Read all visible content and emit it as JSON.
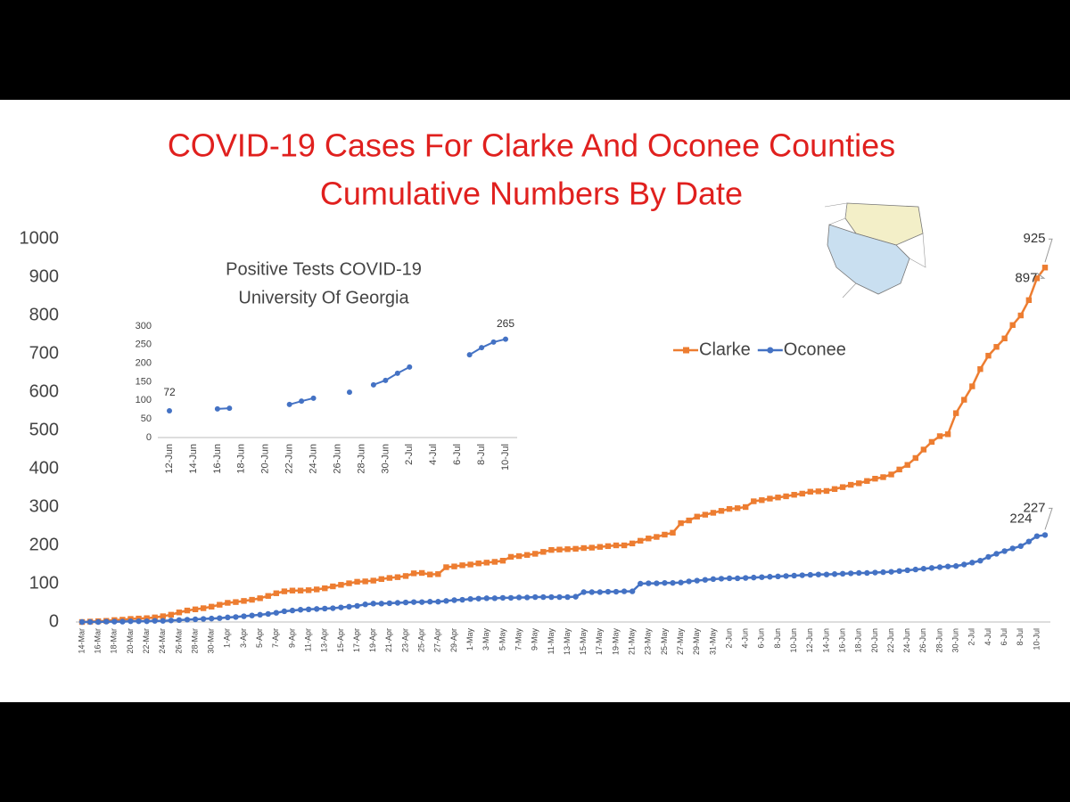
{
  "chart_data": [
    {
      "type": "line",
      "title": "COVID-19 Cases For Clarke And Oconee Counties",
      "subtitle": "Cumulative Numbers By Date",
      "categories": [
        "14-Mar",
        null,
        "16-Mar",
        null,
        "18-Mar",
        null,
        "20-Mar",
        null,
        "22-Mar",
        null,
        "24-Mar",
        null,
        "26-Mar",
        null,
        "28-Mar",
        null,
        "30-Mar",
        null,
        "1-Apr",
        null,
        "3-Apr",
        null,
        "5-Apr",
        null,
        "7-Apr",
        null,
        "9-Apr",
        null,
        "11-Apr",
        null,
        "13-Apr",
        null,
        "15-Apr",
        null,
        "17-Apr",
        null,
        "19-Apr",
        null,
        "21-Apr",
        null,
        "23-Apr",
        null,
        "25-Apr",
        null,
        "27-Apr",
        null,
        "29-Apr",
        null,
        "1-May",
        null,
        "3-May",
        null,
        "5-May",
        null,
        "7-May",
        null,
        "9-May",
        null,
        "11-May",
        null,
        "13-May",
        null,
        "15-May",
        null,
        "17-May",
        null,
        "19-May",
        null,
        "21-May",
        null,
        "23-May",
        null,
        "25-May",
        null,
        "27-May",
        null,
        "29-May",
        null,
        "31-May",
        null,
        "2-Jun",
        null,
        "4-Jun",
        null,
        "6-Jun",
        null,
        "8-Jun",
        null,
        "10-Jun",
        null,
        "12-Jun",
        null,
        "14-Jun",
        null,
        "16-Jun",
        null,
        "18-Jun",
        null,
        "20-Jun",
        null,
        "22-Jun",
        null,
        "24-Jun",
        null,
        "26-Jun",
        null,
        "28-Jun",
        null,
        "30-Jun",
        null,
        "2-Jul",
        null,
        "4-Jul",
        null,
        "6-Jul",
        null,
        "8-Jul",
        null,
        "10-Jul",
        null
      ],
      "series": [
        {
          "name": "Clarke",
          "color": "#ed7d31",
          "marker": "square",
          "values": [
            0,
            1,
            2,
            3,
            5,
            6,
            8,
            9,
            10,
            12,
            15,
            19,
            25,
            30,
            33,
            36,
            40,
            45,
            50,
            52,
            55,
            58,
            62,
            68,
            75,
            80,
            82,
            82,
            83,
            85,
            88,
            93,
            97,
            101,
            105,
            106,
            108,
            112,
            115,
            117,
            120,
            127,
            128,
            124,
            125,
            143,
            145,
            148,
            150,
            153,
            155,
            157,
            160,
            170,
            172,
            175,
            178,
            183,
            188,
            189,
            190,
            191,
            193,
            194,
            196,
            198,
            200,
            200,
            205,
            212,
            218,
            222,
            228,
            233,
            258,
            265,
            275,
            280,
            285,
            290,
            295,
            297,
            300,
            315,
            318,
            322,
            325,
            328,
            332,
            335,
            340,
            341,
            342,
            347,
            352,
            358,
            362,
            368,
            374,
            378,
            385,
            398,
            410,
            428,
            450,
            470,
            485,
            490,
            545,
            580,
            615,
            660,
            695,
            718,
            740,
            775,
            800,
            840,
            897,
            925
          ]
        },
        {
          "name": "Oconee",
          "color": "#4472c4",
          "marker": "circle",
          "values": [
            0,
            0,
            0,
            1,
            1,
            1,
            2,
            2,
            2,
            3,
            3,
            4,
            5,
            6,
            7,
            8,
            9,
            10,
            12,
            13,
            15,
            17,
            19,
            21,
            24,
            28,
            30,
            32,
            33,
            34,
            35,
            36,
            38,
            40,
            42,
            46,
            48,
            48,
            49,
            50,
            51,
            52,
            52,
            53,
            53,
            55,
            57,
            58,
            60,
            61,
            62,
            62,
            63,
            63,
            64,
            64,
            65,
            65,
            65,
            65,
            65,
            66,
            78,
            78,
            78,
            79,
            79,
            80,
            80,
            100,
            101,
            101,
            102,
            102,
            103,
            106,
            108,
            110,
            112,
            113,
            114,
            114,
            115,
            116,
            117,
            118,
            119,
            120,
            121,
            122,
            123,
            124,
            124,
            125,
            126,
            127,
            128,
            128,
            129,
            130,
            131,
            133,
            135,
            137,
            139,
            141,
            143,
            145,
            146,
            150,
            155,
            160,
            170,
            178,
            185,
            192,
            198,
            210,
            224,
            227
          ]
        }
      ],
      "ylim": [
        0,
        1000
      ],
      "yticks": [
        0,
        100,
        200,
        300,
        400,
        500,
        600,
        700,
        800,
        900,
        1000
      ],
      "grid": false,
      "legend": "upper right"
    },
    {
      "type": "line",
      "title": "Positive Tests COVID-19",
      "subtitle": "University Of Georgia",
      "categories": [
        "12-Jun",
        null,
        "14-Jun",
        null,
        "16-Jun",
        null,
        "18-Jun",
        null,
        "20-Jun",
        null,
        "22-Jun",
        null,
        "24-Jun",
        null,
        "26-Jun",
        null,
        "28-Jun",
        null,
        "30-Jun",
        null,
        "2-Jul",
        null,
        "4-Jul",
        null,
        "6-Jul",
        null,
        "8-Jul",
        null,
        "10-Jul"
      ],
      "series": [
        {
          "name": "Positive Tests",
          "color": "#4472c4",
          "marker": "circle",
          "values": [
            72,
            null,
            null,
            null,
            77,
            79,
            null,
            null,
            null,
            null,
            89,
            98,
            106,
            null,
            null,
            122,
            null,
            142,
            154,
            173,
            190,
            null,
            null,
            null,
            null,
            223,
            242,
            257,
            265
          ]
        }
      ],
      "ylim": [
        0,
        300
      ],
      "yticks": [
        0,
        50,
        100,
        150,
        200,
        250,
        300
      ],
      "grid": false,
      "legend": null
    }
  ]
}
